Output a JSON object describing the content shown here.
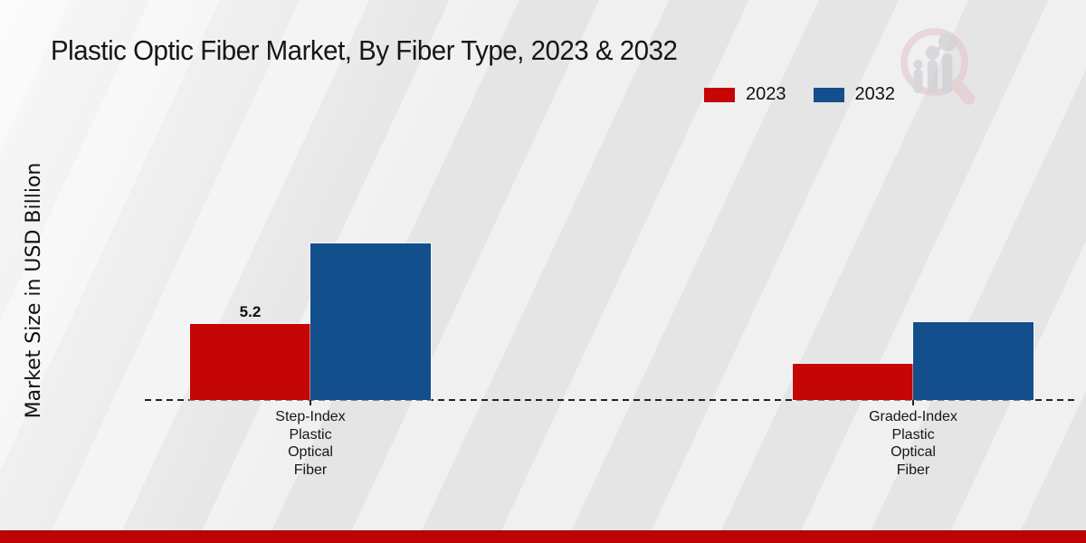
{
  "chart_data": {
    "type": "bar",
    "title": "Plastic Optic Fiber Market, By Fiber Type, 2023 & 2032",
    "ylabel": "Market Size in USD Billion",
    "xlabel": "",
    "categories": [
      "Step-Index Plastic Optical Fiber",
      "Graded-Index Plastic Optical Fiber"
    ],
    "category_label_lines": [
      [
        "Step-Index",
        "Plastic",
        "Optical",
        "Fiber"
      ],
      [
        "Graded-Index",
        "Plastic",
        "Optical",
        "Fiber"
      ]
    ],
    "series": [
      {
        "name": "2023",
        "color": "#c40606",
        "values": [
          5.2,
          2.5
        ],
        "data_labels": [
          "5.2",
          ""
        ]
      },
      {
        "name": "2032",
        "color": "#134e8d",
        "values": [
          10.7,
          5.3
        ],
        "data_labels": [
          "",
          ""
        ]
      }
    ],
    "ylim": [
      0,
      12
    ],
    "grid": false,
    "legend_position": "top-right",
    "baseline_style": "dashed"
  },
  "branding": {
    "logo_icon": "magnifier-bar-chart-logo",
    "logo_ring_color": "#e4c7cb",
    "logo_bars_color": "#c9c9cf",
    "accent_bar_color": "#bd0404"
  }
}
